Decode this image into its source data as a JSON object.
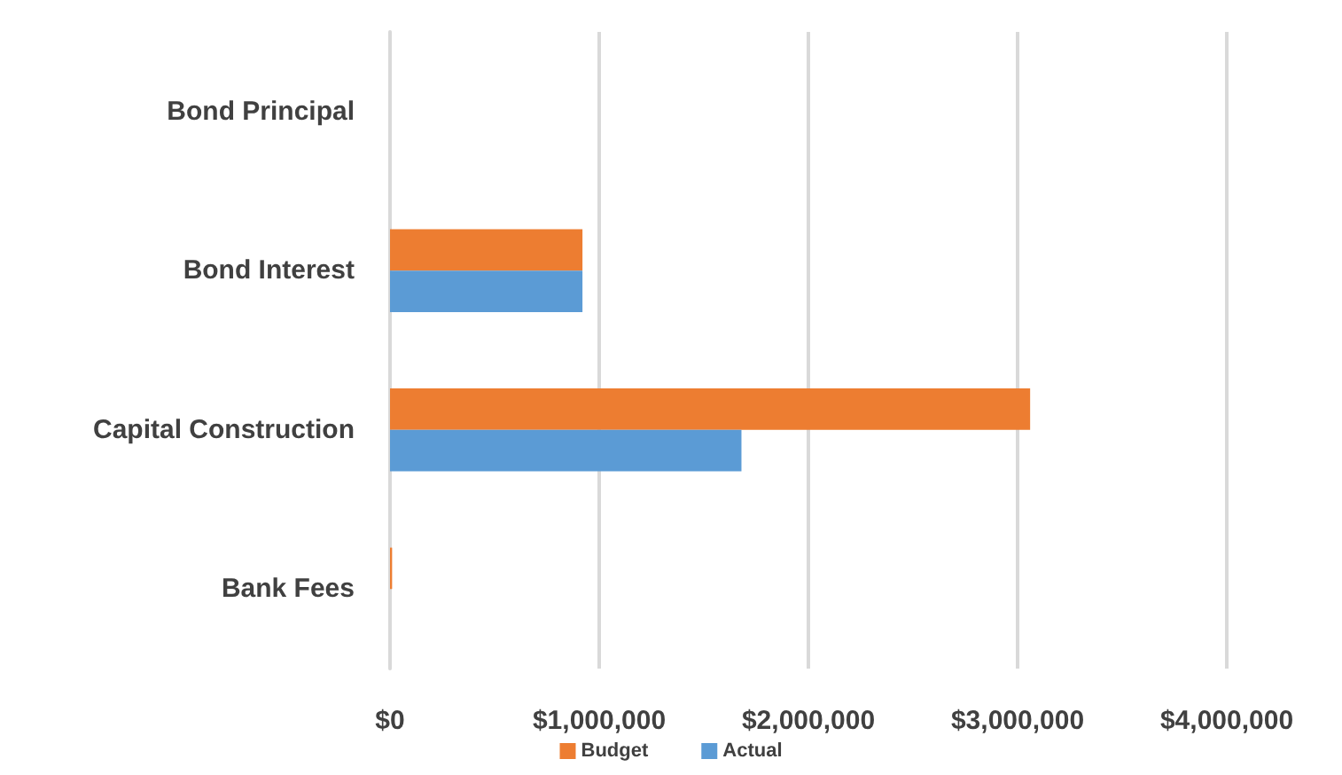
{
  "chart_data": {
    "type": "bar",
    "orientation": "horizontal",
    "categories": [
      "Bond Principal",
      "Bond Interest",
      "Capital Construction",
      "Bank Fees"
    ],
    "series": [
      {
        "name": "Budget",
        "color": "#ed7d31",
        "values": [
          0,
          920000,
          3060000,
          10000
        ]
      },
      {
        "name": "Actual",
        "color": "#5b9bd5",
        "values": [
          0,
          920000,
          1680000,
          0
        ]
      }
    ],
    "xlim": [
      0,
      4000000
    ],
    "xticks": [
      {
        "value": 0,
        "label": "$0"
      },
      {
        "value": 1000000,
        "label": "$1,000,000"
      },
      {
        "value": 2000000,
        "label": "$2,000,000"
      },
      {
        "value": 3000000,
        "label": "$3,000,000"
      },
      {
        "value": 4000000,
        "label": "$4,000,000"
      }
    ],
    "grid": "x",
    "legend": "bottom"
  }
}
